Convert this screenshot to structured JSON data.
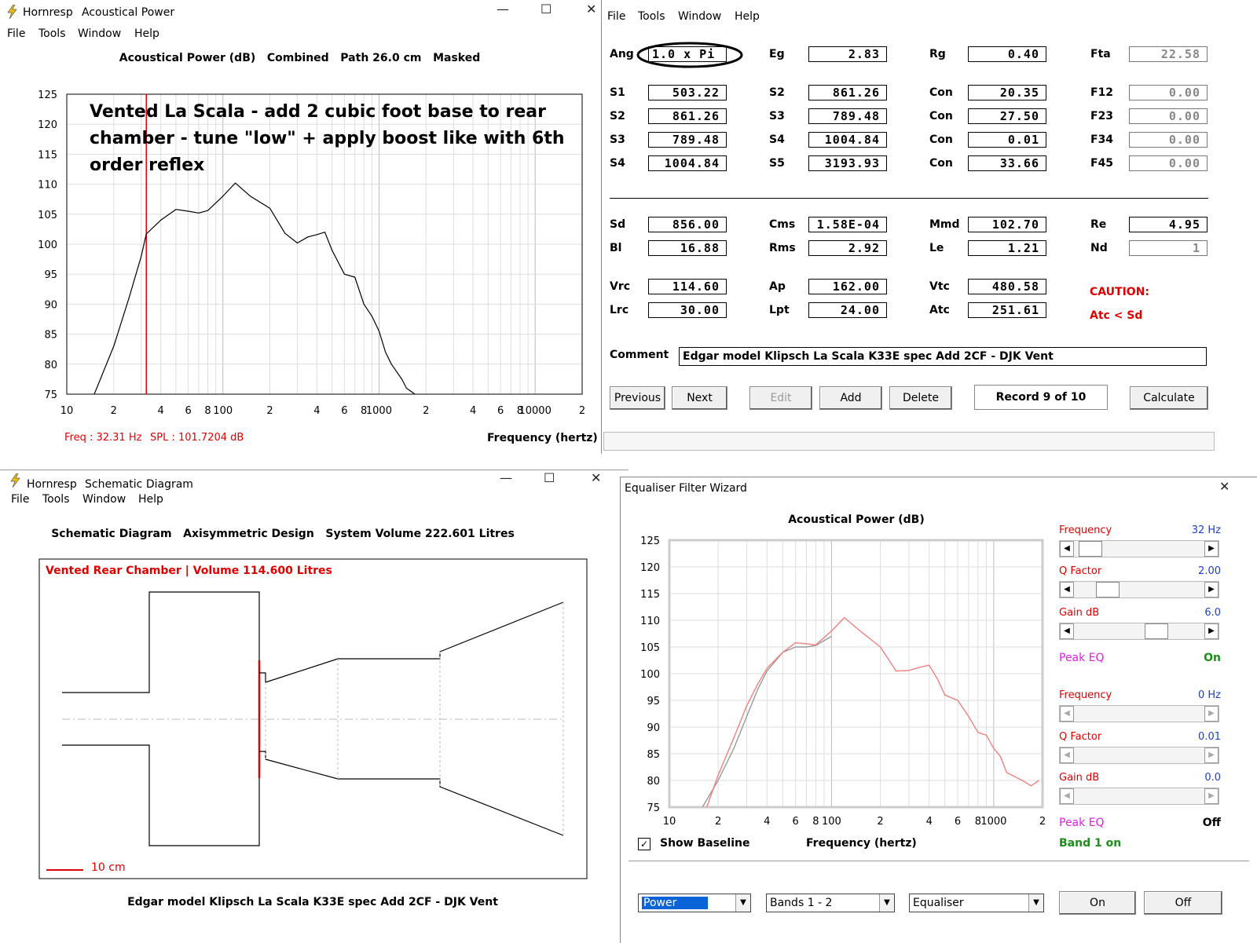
{
  "acoustic_window": {
    "app_name": "Hornresp",
    "title": "Acoustical Power",
    "menu": [
      "File",
      "Tools",
      "Window",
      "Help"
    ],
    "header": "Acoustical Power (dB)   Combined   Path 26.0 cm   Masked",
    "annotation_lines": [
      "Vented La Scala - add 2 cubic foot base to rear",
      "chamber - tune \"low\" + apply boost like with 6th",
      "order reflex"
    ],
    "status_freq": "Freq : 32.31 Hz",
    "status_spl": "SPL : 101.7204 dB",
    "xlabel": "Frequency (hertz)"
  },
  "params_window": {
    "menu": [
      "File",
      "Tools",
      "Window",
      "Help"
    ],
    "rows1": [
      [
        {
          "label": "Ang",
          "value": "1.0 x Pi"
        },
        {
          "label": "Eg",
          "value": "2.83"
        },
        {
          "label": "Rg",
          "value": "0.40"
        },
        {
          "label": "Fta",
          "value": "22.58"
        }
      ]
    ],
    "rows2": [
      [
        {
          "label": "S1",
          "value": "503.22"
        },
        {
          "label": "S2",
          "value": "861.26"
        },
        {
          "label": "Con",
          "value": "20.35"
        },
        {
          "label": "F12",
          "value": "0.00"
        }
      ],
      [
        {
          "label": "S2",
          "value": "861.26"
        },
        {
          "label": "S3",
          "value": "789.48"
        },
        {
          "label": "Con",
          "value": "27.50"
        },
        {
          "label": "F23",
          "value": "0.00"
        }
      ],
      [
        {
          "label": "S3",
          "value": "789.48"
        },
        {
          "label": "S4",
          "value": "1004.84"
        },
        {
          "label": "Con",
          "value": "0.01"
        },
        {
          "label": "F34",
          "value": "0.00"
        }
      ],
      [
        {
          "label": "S4",
          "value": "1004.84"
        },
        {
          "label": "S5",
          "value": "3193.93"
        },
        {
          "label": "Con",
          "value": "33.66"
        },
        {
          "label": "F45",
          "value": "0.00"
        }
      ]
    ],
    "rows3": [
      [
        {
          "label": "Sd",
          "value": "856.00"
        },
        {
          "label": "Cms",
          "value": "1.58E-04"
        },
        {
          "label": "Mmd",
          "value": "102.70"
        },
        {
          "label": "Re",
          "value": "4.95"
        }
      ],
      [
        {
          "label": "Bl",
          "value": "16.88"
        },
        {
          "label": "Rms",
          "value": "2.92"
        },
        {
          "label": "Le",
          "value": "1.21"
        },
        {
          "label": "Nd",
          "value": "1"
        }
      ]
    ],
    "rows4": [
      [
        {
          "label": "Vrc",
          "value": "114.60"
        },
        {
          "label": "Ap",
          "value": "162.00"
        },
        {
          "label": "Vtc",
          "value": "480.58"
        }
      ],
      [
        {
          "label": "Lrc",
          "value": "30.00"
        },
        {
          "label": "Lpt",
          "value": "24.00"
        },
        {
          "label": "Atc",
          "value": "251.61"
        }
      ]
    ],
    "caution_title": "CAUTION:",
    "caution_text": "Atc < Sd",
    "comment_label": "Comment",
    "comment_value": "Edgar model Klipsch La Scala K33E spec Add 2CF - DJK Vent",
    "buttons": {
      "previous": "Previous",
      "next": "Next",
      "edit": "Edit",
      "add": "Add",
      "delete": "Delete",
      "record": "Record 9 of 10",
      "calculate": "Calculate"
    }
  },
  "schematic_window": {
    "app_name": "Hornresp",
    "title": "Schematic Diagram",
    "menu": [
      "File",
      "Tools",
      "Window",
      "Help"
    ],
    "header": "Schematic Diagram   Axisymmetric Design   System Volume 222.601 Litres",
    "red_label": "Vented Rear Chamber | Volume 114.600 Litres",
    "scale_label": "10 cm",
    "footer": "Edgar model Klipsch La Scala K33E spec Add 2CF - DJK Vent"
  },
  "eq_window": {
    "title": "Equaliser Filter Wizard",
    "chart_title": "Acoustical Power (dB)",
    "xlabel": "Frequency (hertz)",
    "show_baseline_label": "Show Baseline",
    "band1": {
      "freq_label": "Frequency",
      "freq_value": "32 Hz",
      "freq_pos": 0.04,
      "q_label": "Q Factor",
      "q_value": "2.00",
      "q_pos": 0.2,
      "gain_label": "Gain  dB",
      "gain_value": "6.0",
      "gain_pos": 0.65,
      "peak_label": "Peak EQ",
      "peak_state": "On"
    },
    "band2": {
      "freq_label": "Frequency",
      "freq_value": "0 Hz",
      "q_label": "Q Factor",
      "q_value": "0.01",
      "gain_label": "Gain  dB",
      "gain_value": "0.0",
      "peak_label": "Peak EQ",
      "peak_state": "Off"
    },
    "band_status": "Band 1 on",
    "combos": [
      "Power",
      "Bands 1 - 2",
      "Equaliser"
    ],
    "btn_on": "On",
    "btn_off": "Off"
  },
  "chart_data": [
    {
      "type": "line",
      "title": "Acoustical Power (dB)",
      "xlabel": "Frequency (hertz)",
      "ylabel": "",
      "xscale": "log",
      "xlim": [
        10,
        20000
      ],
      "ylim": [
        75,
        125
      ],
      "yticks": [
        75,
        80,
        85,
        90,
        95,
        100,
        105,
        110,
        115,
        120,
        125
      ],
      "xtick_labels": [
        "10",
        "2",
        "4",
        "6",
        "8",
        "100",
        "2",
        "4",
        "6",
        "8",
        "1000",
        "2",
        "4",
        "6",
        "8",
        "10000",
        "2"
      ],
      "marker_freq": 32.31,
      "series": [
        {
          "x": [
            15,
            20,
            25,
            30,
            32.3,
            40,
            50,
            60,
            70,
            80,
            100,
            120,
            150,
            200,
            250,
            300,
            350,
            400,
            450,
            500,
            600,
            700,
            800,
            900,
            1000,
            1100,
            1200,
            1400,
            1500,
            1700
          ],
          "y": [
            75,
            83,
            91,
            98,
            101.7,
            104,
            105.8,
            105.5,
            105.2,
            105.6,
            108,
            110.2,
            108,
            106,
            101.8,
            100.2,
            101.2,
            101.6,
            102,
            99,
            95,
            94.5,
            90,
            88,
            85.5,
            82,
            80,
            77.5,
            76,
            75
          ]
        }
      ]
    },
    {
      "type": "line",
      "title": "Acoustical Power (dB)",
      "xlabel": "Frequency (hertz)",
      "ylabel": "",
      "xscale": "log",
      "xlim": [
        10,
        2000
      ],
      "ylim": [
        75,
        125
      ],
      "yticks": [
        75,
        80,
        85,
        90,
        95,
        100,
        105,
        110,
        115,
        120,
        125
      ],
      "xtick_labels": [
        "10",
        "2",
        "4",
        "6",
        "8",
        "100",
        "2",
        "4",
        "6",
        "8",
        "1000",
        "2"
      ],
      "series": [
        {
          "x": [
            17,
            20,
            25,
            30,
            35,
            40,
            45,
            50,
            60,
            70,
            80,
            100,
            120,
            150,
            200,
            250,
            300,
            350,
            400,
            450,
            500,
            600,
            700,
            800,
            900,
            1000,
            1100,
            1200,
            1500,
            1700,
            1900
          ],
          "y": [
            75,
            81,
            88,
            94,
            98,
            101,
            102.6,
            104,
            105.8,
            105.6,
            105.4,
            108,
            110.5,
            108,
            105,
            100.5,
            100.6,
            101.2,
            101.6,
            99,
            96,
            95,
            92,
            89,
            88.5,
            86,
            84.5,
            81.5,
            80,
            79,
            80
          ]
        },
        {
          "x": [
            16,
            20,
            25,
            30,
            35,
            40,
            50,
            60,
            70,
            80,
            100
          ],
          "y": [
            75,
            80,
            86,
            92,
            97,
            100.5,
            104,
            105,
            105,
            105.3,
            107
          ]
        }
      ]
    }
  ]
}
